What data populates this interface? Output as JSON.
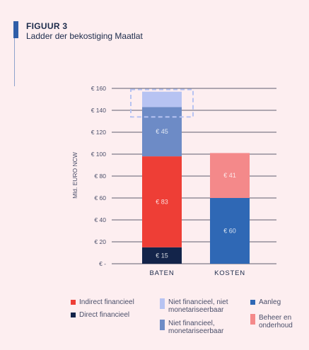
{
  "header": {
    "label": "FIGUUR 3",
    "title": "Ladder der bekostiging Maatlat"
  },
  "chart_data": {
    "type": "bar",
    "stacked": true,
    "ylabel": "Mld. EURO NCW",
    "ylim": [
      0,
      160
    ],
    "yticks": [
      0,
      20,
      40,
      60,
      80,
      100,
      120,
      140,
      160
    ],
    "ytick_labels": [
      "€ -",
      "€ 20",
      "€ 40",
      "€ 60",
      "€ 80",
      "€ 100",
      "€ 120",
      "€ 140",
      "€ 160"
    ],
    "categories": [
      "BATEN",
      "KOSTEN"
    ],
    "series": [
      {
        "name": "Direct financieel",
        "color": "#13244a",
        "values": [
          15,
          0
        ],
        "labels": [
          "€ 15",
          ""
        ],
        "category": "BATEN"
      },
      {
        "name": "Indirect financieel",
        "color": "#ee3e36",
        "values": [
          83,
          0
        ],
        "labels": [
          "€ 83",
          ""
        ],
        "category": "BATEN"
      },
      {
        "name": "Niet financieel, monetariseerbaar",
        "color": "#6d8bc6",
        "values": [
          45,
          0
        ],
        "labels": [
          "€ 45",
          ""
        ],
        "category": "BATEN"
      },
      {
        "name": "Niet financieel, niet monetariseerbaar",
        "color": "#b7c3f2",
        "values": [
          14,
          0
        ],
        "labels": [
          "",
          ""
        ],
        "category": "BATEN"
      },
      {
        "name": "Aanleg",
        "color": "#2f68b5",
        "values": [
          0,
          60
        ],
        "labels": [
          "",
          "€ 60"
        ],
        "category": "KOSTEN"
      },
      {
        "name": "Beheer en onderhoud",
        "color": "#f4898a",
        "values": [
          0,
          41
        ],
        "labels": [
          "",
          "€ 41"
        ],
        "category": "KOSTEN"
      }
    ],
    "grid": true
  },
  "legend": [
    {
      "lines": [
        "Indirect financieel"
      ],
      "color": "#ee3e36"
    },
    {
      "lines": [
        "Direct financieel"
      ],
      "color": "#13244a"
    },
    {
      "lines": [
        "Niet financieel, niet",
        "monetariseerbaar"
      ],
      "color": "#b7c3f2"
    },
    {
      "lines": [
        "Niet financieel,",
        "monetariseerbaar"
      ],
      "color": "#6d8bc6"
    },
    {
      "lines": [
        "Aanleg"
      ],
      "color": "#2f68b5"
    },
    {
      "lines": [
        "Beheer en",
        "onderhoud"
      ],
      "color": "#f4898a"
    }
  ]
}
